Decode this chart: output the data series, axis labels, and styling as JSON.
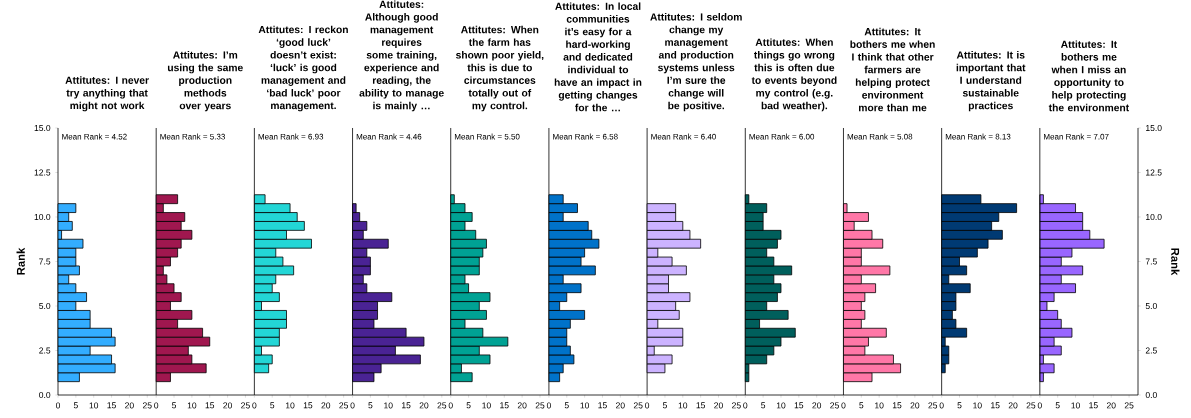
{
  "chart_data": [
    {
      "type": "histogram",
      "orientation": "horizontal",
      "title": "Attitutes: I never try anything that might not work",
      "annotations": [
        "Mean Rank = 4.52"
      ],
      "color": "#33adff",
      "bins": [
        0.75,
        1.25,
        1.75,
        2.25,
        2.75,
        3.25,
        3.75,
        4.25,
        4.75,
        5.25,
        5.75,
        6.25,
        6.75,
        7.25,
        7.75,
        8.25,
        8.75,
        9.25,
        9.75,
        10.25,
        10.75
      ],
      "values": [
        6,
        16,
        15,
        9,
        16,
        15,
        9,
        9,
        5,
        8,
        5,
        3,
        6,
        5,
        5,
        7,
        1,
        4,
        3,
        5
      ],
      "xlim": [
        0,
        27.5
      ],
      "xticks": [
        0,
        5,
        10,
        15,
        20,
        25
      ],
      "ylim": [
        0,
        15
      ],
      "yticks": [
        {
          "value": 0,
          "label": "0.0"
        },
        {
          "value": 2.5,
          "label": "2.5"
        },
        {
          "value": 5,
          "label": "5.0"
        },
        {
          "value": 7.5,
          "label": "7.5"
        },
        {
          "value": 10,
          "label": "10.0"
        },
        {
          "value": 12.5,
          "label": "12.5"
        },
        {
          "value": 15,
          "label": "15.0"
        }
      ],
      "ylabel": "Rank"
    },
    {
      "type": "histogram",
      "orientation": "horizontal",
      "title": "Attitutes: I’m using the same production methods over years",
      "annotations": [
        "Mean Rank = 5.33"
      ],
      "color": "#a0174f",
      "bins": [
        0.75,
        1.25,
        1.75,
        2.25,
        2.75,
        3.25,
        3.75,
        4.25,
        4.75,
        5.25,
        5.75,
        6.25,
        6.75,
        7.25,
        7.75,
        8.25,
        8.75,
        9.25,
        9.75,
        10.25,
        10.75,
        11.25
      ],
      "values": [
        4,
        14,
        10,
        9,
        15,
        13,
        6,
        10,
        4,
        7,
        5,
        3,
        2,
        4,
        6,
        7,
        10,
        7,
        8,
        2,
        6
      ],
      "xlim": [
        0,
        27.5
      ],
      "xticks": [
        0,
        5,
        10,
        15,
        20,
        25
      ],
      "ylim": [
        0,
        15
      ],
      "tick_labels": "x"
    },
    {
      "type": "histogram",
      "orientation": "horizontal",
      "title": "Attitutes: I reckon ‘good luck’ doesn’t exist: ‘luck’ is good management and ‘bad luck’ poor management.",
      "annotations": [
        "Mean Rank = 6.93"
      ],
      "color": "#23d6d6",
      "bins": [
        1.25,
        1.75,
        2.25,
        2.75,
        3.25,
        3.75,
        4.25,
        4.75,
        5.25,
        5.75,
        6.25,
        6.75,
        7.25,
        7.75,
        8.25,
        8.75,
        9.25,
        9.75,
        10.25,
        10.75,
        11.25
      ],
      "values": [
        4,
        5,
        2,
        7,
        7,
        9,
        9,
        2,
        7,
        5,
        6,
        11,
        8,
        6,
        16,
        9,
        14,
        12,
        10,
        3
      ],
      "xlim": [
        0,
        27.5
      ],
      "xticks": [
        0,
        5,
        10,
        15,
        20,
        25
      ],
      "ylim": [
        0,
        15
      ],
      "tick_labels": "x"
    },
    {
      "type": "histogram",
      "orientation": "horizontal",
      "title": "Attitutes: Although good management requires some training, experience and reading, the ability to manage is mainly …",
      "annotations": [
        "Mean Rank = 4.46"
      ],
      "color": "#4a2394",
      "bins": [
        0.75,
        1.25,
        1.75,
        2.25,
        2.75,
        3.25,
        3.75,
        4.25,
        4.75,
        5.25,
        5.75,
        6.25,
        6.75,
        7.25,
        7.75,
        8.25,
        8.75,
        9.25,
        9.75,
        10.25,
        10.75
      ],
      "values": [
        6,
        8,
        19,
        12,
        20,
        15,
        6,
        7,
        7,
        11,
        4,
        3,
        5,
        5,
        4,
        10,
        3,
        4,
        2,
        1
      ],
      "xlim": [
        0,
        27.5
      ],
      "xticks": [
        0,
        5,
        10,
        15,
        20,
        25
      ],
      "ylim": [
        0,
        15
      ],
      "tick_labels": "x"
    },
    {
      "type": "histogram",
      "orientation": "horizontal",
      "title": "Attitutes: When the farm has shown poor yield, this is due to circumstances totally out of my control.",
      "annotations": [
        "Mean Rank = 5.50"
      ],
      "color": "#00a294",
      "bins": [
        0.75,
        1.25,
        1.75,
        2.25,
        2.75,
        3.25,
        3.75,
        4.25,
        4.75,
        5.25,
        5.75,
        6.25,
        6.75,
        7.25,
        7.75,
        8.25,
        8.75,
        9.25,
        9.75,
        10.25,
        10.75,
        11.25
      ],
      "values": [
        6,
        3,
        11,
        8,
        16,
        9,
        4,
        10,
        8,
        11,
        5,
        4,
        8,
        8,
        9,
        10,
        7,
        4,
        6,
        4,
        1
      ],
      "xlim": [
        0,
        27.5
      ],
      "xticks": [
        0,
        5,
        10,
        15,
        20,
        25
      ],
      "ylim": [
        0,
        15
      ],
      "tick_labels": "x"
    },
    {
      "type": "histogram",
      "orientation": "horizontal",
      "title": "Attitutes: In local communities it’s easy for a hard-working and dedicated individual to have an impact in getting changes for the …",
      "annotations": [
        "Mean Rank = 6.58"
      ],
      "color": "#0072c9",
      "bins": [
        0.75,
        1.25,
        1.75,
        2.25,
        2.75,
        3.25,
        3.75,
        4.25,
        4.75,
        5.25,
        5.75,
        6.25,
        6.75,
        7.25,
        7.75,
        8.25,
        8.75,
        9.25,
        9.75,
        10.25,
        10.75,
        11.25
      ],
      "values": [
        3,
        4,
        7,
        6,
        5,
        5,
        6,
        10,
        3,
        5,
        9,
        4,
        13,
        9,
        10,
        14,
        12,
        11,
        4,
        8,
        4
      ],
      "xlim": [
        0,
        27.5
      ],
      "xticks": [
        0,
        5,
        10,
        15,
        20,
        25
      ],
      "ylim": [
        0,
        15
      ],
      "tick_labels": "x"
    },
    {
      "type": "histogram",
      "orientation": "horizontal",
      "title": "Attitutes: I seldom change my management and production systems unless I’m sure the change will be positive.",
      "annotations": [
        "Mean Rank = 6.40"
      ],
      "color": "#ccb3ff",
      "bins": [
        1.25,
        1.75,
        2.25,
        2.75,
        3.25,
        3.75,
        4.25,
        4.75,
        5.25,
        5.75,
        6.25,
        6.75,
        7.25,
        7.75,
        8.25,
        8.75,
        9.25,
        9.75,
        10.25,
        10.75
      ],
      "values": [
        5,
        7,
        2,
        10,
        10,
        3,
        9,
        8,
        12,
        6,
        6,
        11,
        7,
        3,
        15,
        12,
        10,
        8,
        8
      ],
      "xlim": [
        0,
        27.5
      ],
      "xticks": [
        0,
        5,
        10,
        15,
        20,
        25
      ],
      "ylim": [
        0,
        15
      ],
      "tick_labels": "x"
    },
    {
      "type": "histogram",
      "orientation": "horizontal",
      "title": "Attitutes: When things go wrong this is often due to events beyond my control (e.g. bad weather).",
      "annotations": [
        "Mean Rank = 6.00"
      ],
      "color": "#005f5c",
      "bins": [
        0.75,
        1.25,
        1.75,
        2.25,
        2.75,
        3.25,
        3.75,
        4.25,
        4.75,
        5.25,
        5.75,
        6.25,
        6.75,
        7.25,
        7.75,
        8.25,
        8.75,
        9.25,
        9.75,
        10.25,
        10.75,
        11.25
      ],
      "values": [
        1,
        1,
        6,
        8,
        10,
        14,
        4,
        12,
        6,
        9,
        10,
        8,
        13,
        8,
        6,
        9,
        10,
        5,
        5,
        6,
        1
      ],
      "xlim": [
        0,
        27.5
      ],
      "xticks": [
        0,
        5,
        10,
        15,
        20,
        25
      ],
      "ylim": [
        0,
        15
      ],
      "tick_labels": "x"
    },
    {
      "type": "histogram",
      "orientation": "horizontal",
      "title": "Attitutes: It bothers me when I think that other farmers are helping protect environment more than me",
      "annotations": [
        "Mean Rank = 5.08"
      ],
      "color": "#ff77a7",
      "bins": [
        0.75,
        1.25,
        1.75,
        2.25,
        2.75,
        3.25,
        3.75,
        4.25,
        4.75,
        5.25,
        5.75,
        6.25,
        6.75,
        7.25,
        7.75,
        8.25,
        8.75,
        9.25,
        9.75,
        10.25,
        10.75
      ],
      "values": [
        8,
        16,
        14,
        6,
        7,
        12,
        5,
        6,
        5,
        6,
        9,
        5,
        13,
        5,
        5,
        11,
        8,
        3,
        7,
        1
      ],
      "xlim": [
        0,
        27.5
      ],
      "xticks": [
        0,
        5,
        10,
        15,
        20,
        25
      ],
      "ylim": [
        0,
        15
      ],
      "tick_labels": "x"
    },
    {
      "type": "histogram",
      "orientation": "horizontal",
      "title": "Attitutes: It is important that I understand sustainable practices",
      "annotations": [
        "Mean Rank = 8.13"
      ],
      "color": "#003a73",
      "bins": [
        1.25,
        1.75,
        2.25,
        2.75,
        3.25,
        3.75,
        4.25,
        4.75,
        5.25,
        5.75,
        6.25,
        6.75,
        7.25,
        7.75,
        8.25,
        8.75,
        9.25,
        9.75,
        10.25,
        10.75,
        11.25
      ],
      "values": [
        1,
        2,
        2,
        1,
        7,
        4,
        3,
        4,
        4,
        8,
        2,
        7,
        5,
        10,
        13,
        17,
        14,
        16,
        21,
        11
      ],
      "xlim": [
        0,
        27.5
      ],
      "xticks": [
        0,
        5,
        10,
        15,
        20,
        25
      ],
      "ylim": [
        0,
        15
      ],
      "tick_labels": "x"
    },
    {
      "type": "histogram",
      "orientation": "horizontal",
      "title": "Attitutes: It bothers me when I miss an opportunity to help protecting the environment",
      "annotations": [
        "Mean Rank = 7.07"
      ],
      "color": "#9966ff",
      "bins": [
        0.75,
        1.25,
        1.75,
        2.25,
        2.75,
        3.25,
        3.75,
        4.25,
        4.75,
        5.25,
        5.75,
        6.25,
        6.75,
        7.25,
        7.75,
        8.25,
        8.75,
        9.25,
        9.75,
        10.25,
        10.75,
        11.25
      ],
      "values": [
        1,
        4,
        1,
        6,
        4,
        9,
        6,
        5,
        2,
        4,
        10,
        6,
        12,
        6,
        9,
        18,
        14,
        12,
        12,
        10,
        1
      ],
      "xlim": [
        0,
        27.5
      ],
      "xticks": [
        0,
        5,
        10,
        15,
        20,
        25
      ],
      "ylim": [
        0,
        15
      ],
      "y2lim": [
        0,
        15
      ],
      "y2ticks": [
        {
          "value": 0,
          "label": "0.0"
        },
        {
          "value": 2.5,
          "label": "2.5"
        },
        {
          "value": 5,
          "label": "5.0"
        },
        {
          "value": 7.5,
          "label": "7.5"
        },
        {
          "value": 10,
          "label": "10.0"
        },
        {
          "value": 12.5,
          "label": "12.5"
        },
        {
          "value": 15,
          "label": "15.0"
        }
      ],
      "y2label": "Rank"
    }
  ]
}
